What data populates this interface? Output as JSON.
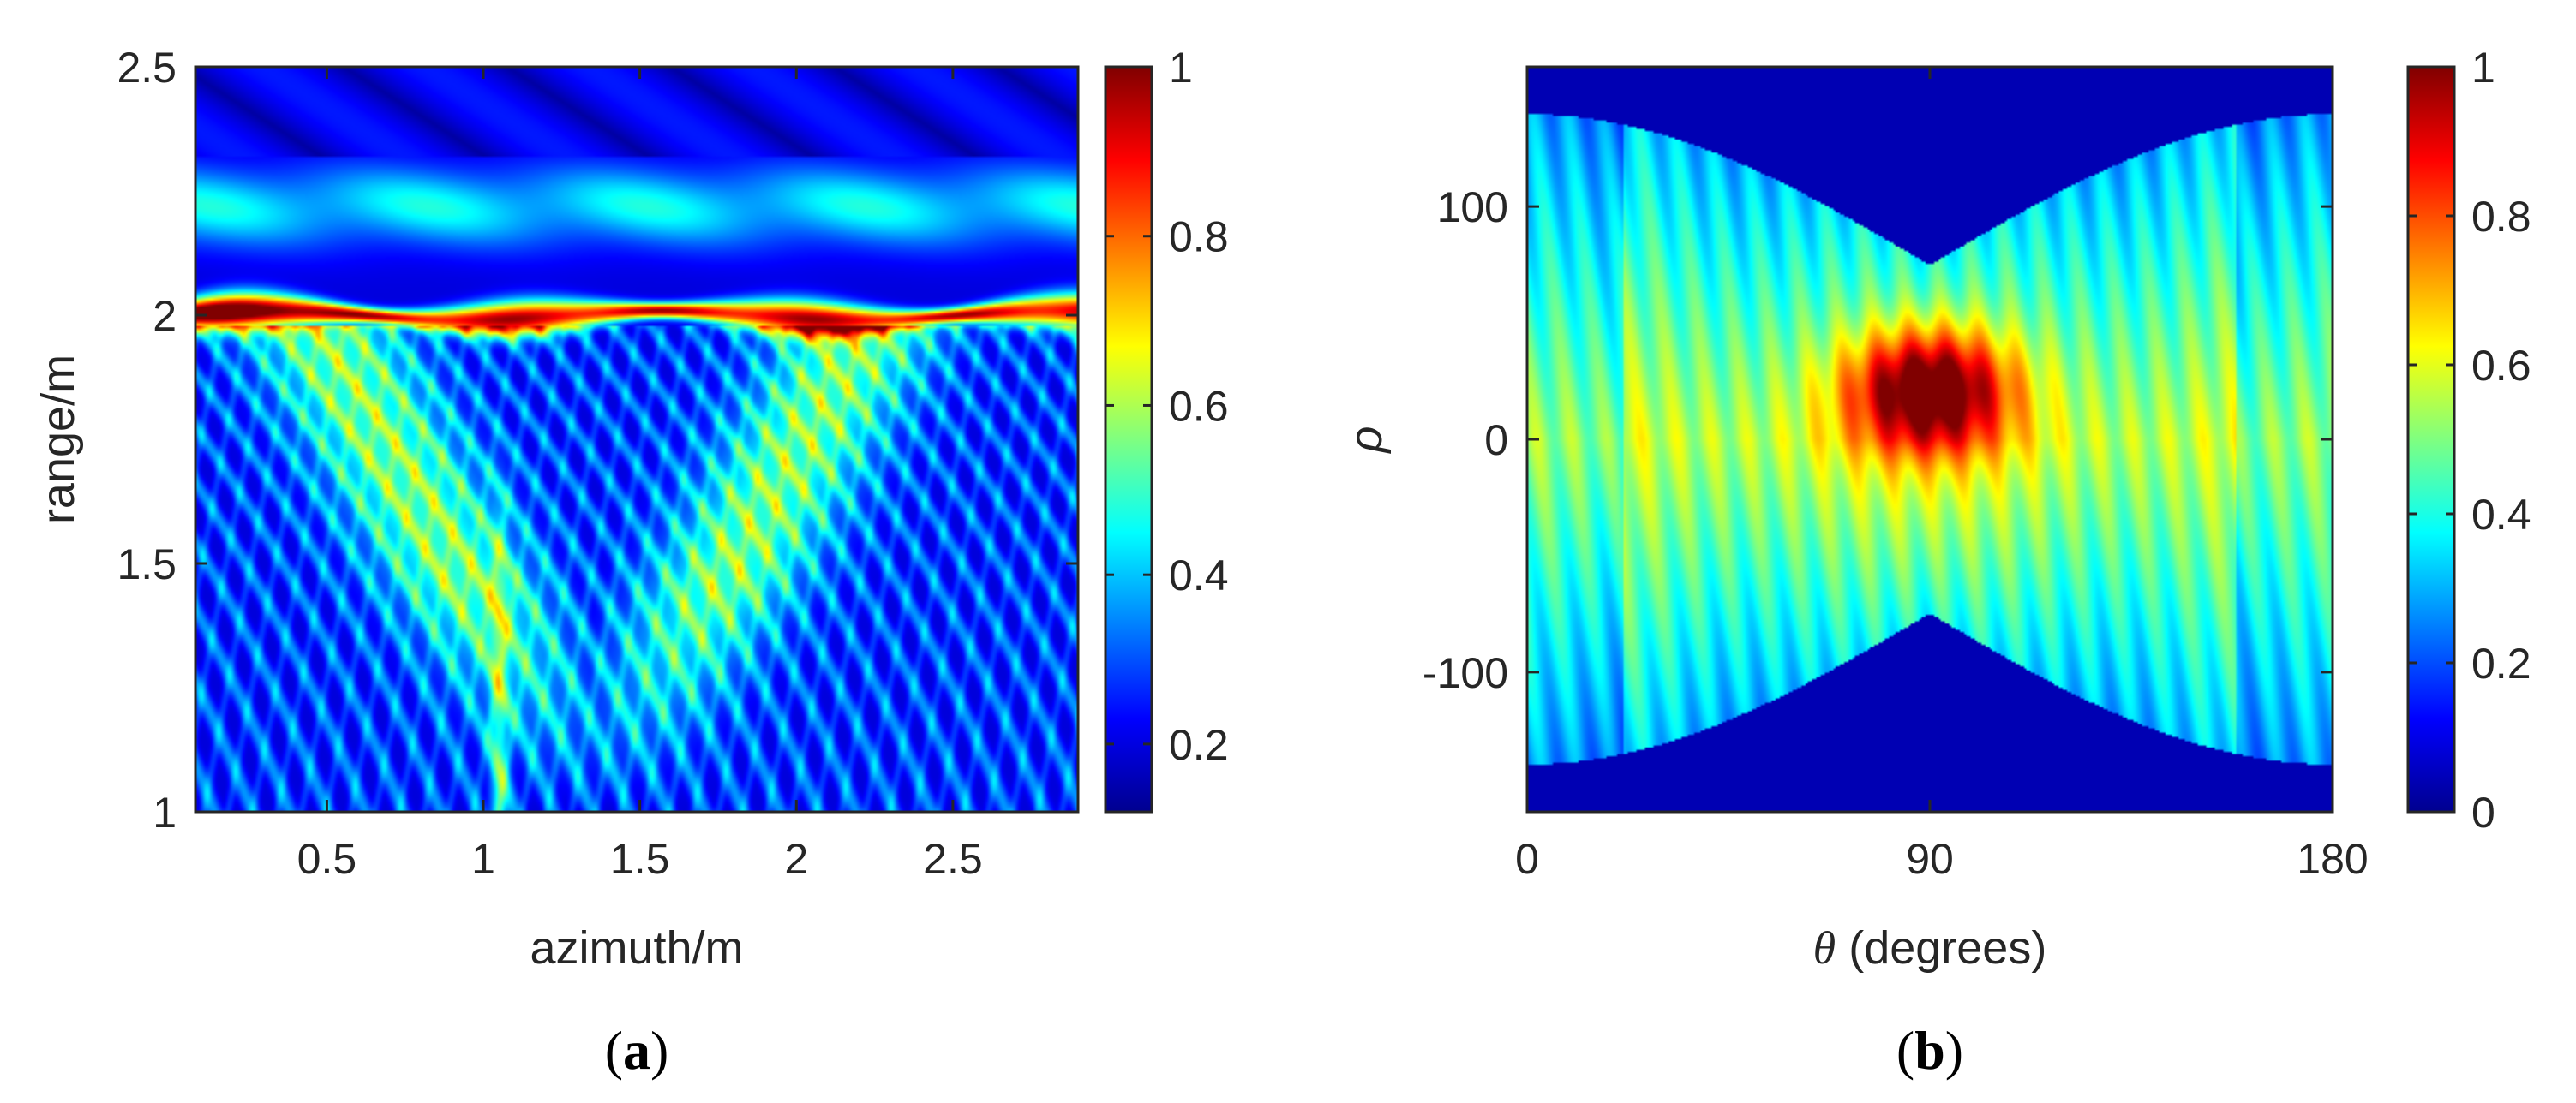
{
  "chart_data": [
    {
      "type": "heatmap",
      "caption_letter": "a",
      "xlabel": "azimuth/m",
      "ylabel": "range/m",
      "xlim": [
        0.08,
        2.9
      ],
      "ylim": [
        1,
        2.5
      ],
      "xticks": [
        {
          "v": 0.5,
          "label": "0.5"
        },
        {
          "v": 1,
          "label": "1"
        },
        {
          "v": 1.5,
          "label": "1.5"
        },
        {
          "v": 2,
          "label": "2"
        },
        {
          "v": 2.5,
          "label": "2.5"
        }
      ],
      "yticks": [
        {
          "v": 1,
          "label": "1"
        },
        {
          "v": 1.5,
          "label": "1.5"
        },
        {
          "v": 2,
          "label": "2"
        },
        {
          "v": 2.5,
          "label": "2.5"
        }
      ],
      "colorbar": {
        "colormap": "jet",
        "clim": [
          0.12,
          1
        ],
        "ticks": [
          {
            "v": 0.2,
            "label": "0.2"
          },
          {
            "v": 0.4,
            "label": "0.4"
          },
          {
            "v": 0.6,
            "label": "0.6"
          },
          {
            "v": 0.8,
            "label": "0.8"
          },
          {
            "v": 1,
            "label": "1"
          }
        ]
      },
      "features": {
        "target_ridge_range": 2.0,
        "ridge_peak_azimuth": 0.22,
        "ridge_peak_value": 1.0,
        "upper_band_range": 2.22,
        "background_value": 0.2
      }
    },
    {
      "type": "heatmap",
      "caption_letter": "b",
      "xlabel": "θ (degrees)",
      "ylabel": "ρ",
      "xlim": [
        0,
        180
      ],
      "ylim": [
        -160,
        160
      ],
      "xticks": [
        {
          "v": 0,
          "label": "0"
        },
        {
          "v": 90,
          "label": "90"
        },
        {
          "v": 180,
          "label": "180"
        }
      ],
      "yticks": [
        {
          "v": -100,
          "label": "-100"
        },
        {
          "v": 0,
          "label": "0"
        },
        {
          "v": 100,
          "label": "100"
        }
      ],
      "colorbar": {
        "colormap": "jet",
        "clim": [
          0,
          1
        ],
        "ticks": [
          {
            "v": 0,
            "label": "0"
          },
          {
            "v": 0.2,
            "label": "0.2"
          },
          {
            "v": 0.4,
            "label": "0.4"
          },
          {
            "v": 0.6,
            "label": "0.6"
          },
          {
            "v": 0.8,
            "label": "0.8"
          },
          {
            "v": 1,
            "label": "1"
          }
        ]
      },
      "features": {
        "peak_theta": 90,
        "peak_rho": 22,
        "peak_value": 1.0,
        "envelope_rho_max": 140,
        "hourglass_waist_rho": 75,
        "background_value": 0.05
      }
    }
  ]
}
